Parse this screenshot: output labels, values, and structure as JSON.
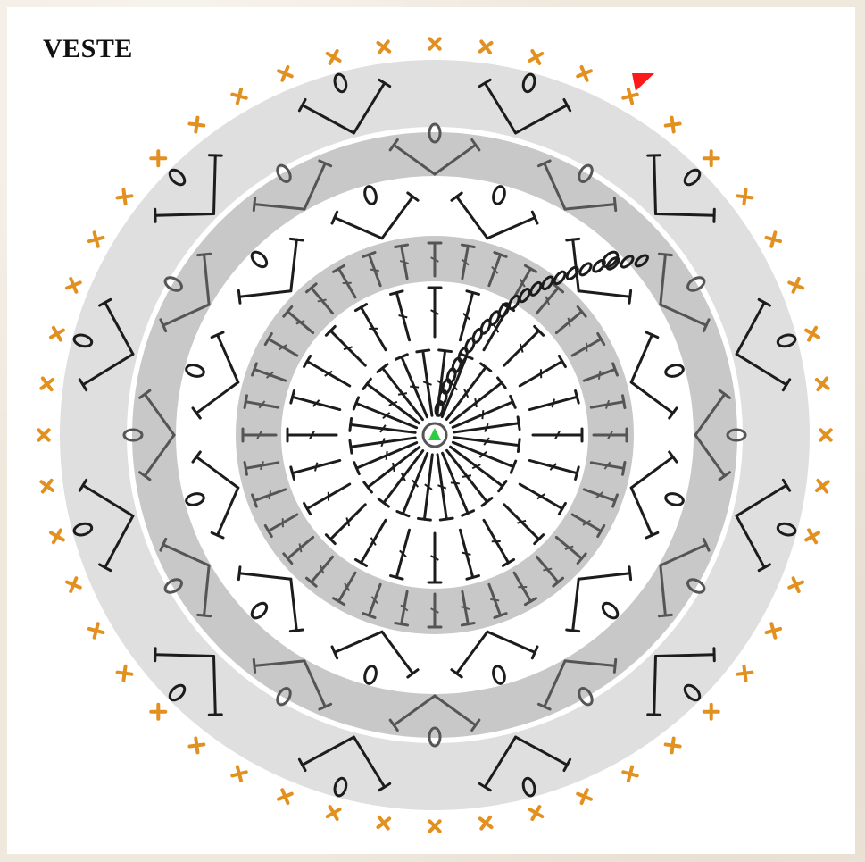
{
  "title": "VESTE",
  "colors": {
    "background": "#efe8dd",
    "sheet": "#ffffff",
    "band_light": "#dfdfdf",
    "band_dark": "#c8c8c8",
    "separator": "#ffffff",
    "stitch_ink": "#1c1c1c",
    "stitch_grey": "#555555",
    "edge_cross": "#e2901f",
    "start_marker": "#2ecc40",
    "end_marker": "#ff1a1a"
  },
  "rounds": [
    {
      "round": 1,
      "stitch": "double-crochet",
      "count": 24
    },
    {
      "round": 2,
      "stitch": "double-crochet",
      "count": 24
    },
    {
      "round": 3,
      "stitch": "v-stitch-with-chain-loop",
      "count": 12
    },
    {
      "round": 4,
      "stitch": "v-stitch-with-chain-loop",
      "count": 12
    },
    {
      "round": 5,
      "stitch": "v-stitch-with-chain-loop",
      "count": 12
    },
    {
      "round": 6,
      "stitch": "single-crochet-edge",
      "count": 48
    }
  ],
  "markers": {
    "start": "green-triangle-icon",
    "end": "red-triangle-icon"
  }
}
